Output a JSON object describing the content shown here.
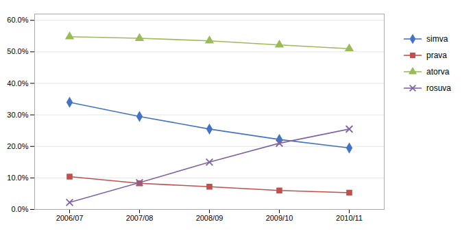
{
  "chart_data": {
    "type": "line",
    "categories": [
      "2006/07",
      "2007/08",
      "2008/09",
      "2009/10",
      "2010/11"
    ],
    "series": [
      {
        "name": "simva",
        "color": "#4472C4",
        "marker": "diamond",
        "values": [
          0.34,
          0.295,
          0.255,
          0.222,
          0.195
        ]
      },
      {
        "name": "prava",
        "color": "#C0504D",
        "marker": "square",
        "values": [
          0.104,
          0.083,
          0.072,
          0.06,
          0.053
        ]
      },
      {
        "name": "atorva",
        "color": "#9BBB59",
        "marker": "triangle",
        "values": [
          0.548,
          0.543,
          0.535,
          0.522,
          0.51
        ]
      },
      {
        "name": "rosuva",
        "color": "#8064A2",
        "marker": "x",
        "values": [
          0.022,
          0.085,
          0.15,
          0.21,
          0.255
        ]
      }
    ],
    "ylim": [
      0.0,
      0.62
    ],
    "yticks": [
      {
        "value": 0.0,
        "label": "0.0%"
      },
      {
        "value": 0.1,
        "label": "10.0%"
      },
      {
        "value": 0.2,
        "label": "20.0%"
      },
      {
        "value": 0.3,
        "label": "30.0%"
      },
      {
        "value": 0.4,
        "label": "40.0%"
      },
      {
        "value": 0.5,
        "label": "50.0%"
      },
      {
        "value": 0.6,
        "label": "60.0%"
      }
    ],
    "grid": true,
    "legend": "right"
  }
}
